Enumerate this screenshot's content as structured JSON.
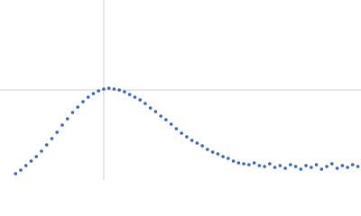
{
  "chart_data": {
    "type": "scatter",
    "xlim": [
      0,
      3.48
    ],
    "ylim": [
      0,
      2
    ],
    "xticks": [
      1
    ],
    "yticks": [
      1
    ],
    "grid": true,
    "series": [
      {
        "color": "#3a65b5",
        "x": [
          0.15,
          0.2,
          0.25,
          0.3,
          0.35,
          0.4,
          0.45,
          0.5,
          0.55,
          0.6,
          0.65,
          0.7,
          0.75,
          0.8,
          0.85,
          0.9,
          0.95,
          1,
          1.05,
          1.1,
          1.15,
          1.2,
          1.25,
          1.3,
          1.35,
          1.4,
          1.45,
          1.5,
          1.55,
          1.6,
          1.65,
          1.7,
          1.75,
          1.8,
          1.85,
          1.9,
          1.95,
          2,
          2.05,
          2.1,
          2.15,
          2.2,
          2.25,
          2.3,
          2.35,
          2.4,
          2.45,
          2.5,
          2.55,
          2.6,
          2.65,
          2.7,
          2.75,
          2.8,
          2.85,
          2.9,
          2.95,
          3,
          3.05,
          3.1,
          3.15,
          3.2,
          3.25,
          3.3,
          3.35,
          3.4,
          3.45
        ],
        "values": [
          0.07,
          0.11,
          0.16,
          0.21,
          0.26,
          0.32,
          0.39,
          0.46,
          0.53,
          0.61,
          0.68,
          0.75,
          0.81,
          0.87,
          0.92,
          0.96,
          0.99,
          1.01,
          1.02,
          1.01,
          1.0,
          0.98,
          0.95,
          0.92,
          0.89,
          0.85,
          0.8,
          0.76,
          0.71,
          0.67,
          0.62,
          0.57,
          0.52,
          0.48,
          0.44,
          0.41,
          0.38,
          0.34,
          0.31,
          0.29,
          0.26,
          0.24,
          0.21,
          0.19,
          0.18,
          0.17,
          0.19,
          0.16,
          0.15,
          0.18,
          0.14,
          0.16,
          0.13,
          0.17,
          0.15,
          0.12,
          0.16,
          0.14,
          0.17,
          0.12,
          0.15,
          0.18,
          0.13,
          0.16,
          0.14,
          0.17,
          0.15
        ]
      }
    ]
  }
}
